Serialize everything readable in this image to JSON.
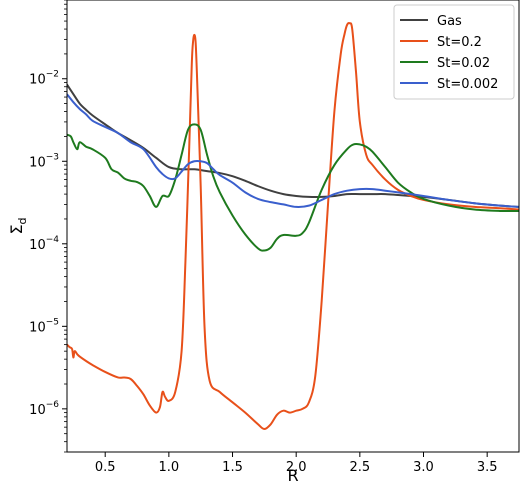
{
  "chart_data": {
    "type": "line",
    "xlabel": "R",
    "ylabel": "Σ_d",
    "xlim": [
      0.2,
      3.75
    ],
    "ylim": [
      3e-07,
      0.09
    ],
    "yscale": "log",
    "xticks": [
      0.5,
      1.0,
      1.5,
      2.0,
      2.5,
      3.0,
      3.5
    ],
    "xtick_labels": [
      "0.5",
      "1.0",
      "1.5",
      "2.0",
      "2.5",
      "3.0",
      "3.5"
    ],
    "ytick_exponents": [
      -6,
      -5,
      -4,
      -3,
      -2
    ],
    "ytick_base": "10",
    "grid": false,
    "legend_position": "top-right",
    "series": [
      {
        "name": "Gas",
        "color": "#404040",
        "x": [
          0.2,
          0.25,
          0.3,
          0.35,
          0.4,
          0.5,
          0.6,
          0.7,
          0.8,
          0.9,
          1.0,
          1.1,
          1.2,
          1.3,
          1.4,
          1.5,
          1.6,
          1.7,
          1.8,
          1.9,
          2.0,
          2.1,
          2.2,
          2.3,
          2.4,
          2.5,
          2.6,
          2.7,
          2.8,
          2.9,
          3.0,
          3.2,
          3.4,
          3.6,
          3.75
        ],
        "y": [
          0.0085,
          0.0065,
          0.005,
          0.0042,
          0.0036,
          0.0028,
          0.0022,
          0.0018,
          0.00145,
          0.0011,
          0.00085,
          0.0008,
          0.0008,
          0.00076,
          0.00072,
          0.00066,
          0.00058,
          0.0005,
          0.00044,
          0.0004,
          0.00038,
          0.00037,
          0.00037,
          0.00038,
          0.0004,
          0.0004,
          0.0004,
          0.0004,
          0.00039,
          0.00038,
          0.00037,
          0.00034,
          0.00031,
          0.00029,
          0.00028
        ]
      },
      {
        "name": "St=0.2",
        "color": "#e8501a",
        "x": [
          0.2,
          0.22,
          0.24,
          0.25,
          0.26,
          0.28,
          0.3,
          0.35,
          0.4,
          0.5,
          0.6,
          0.65,
          0.7,
          0.75,
          0.8,
          0.85,
          0.9,
          0.93,
          0.95,
          0.97,
          1.0,
          1.05,
          1.1,
          1.13,
          1.16,
          1.18,
          1.19,
          1.2,
          1.21,
          1.22,
          1.25,
          1.28,
          1.32,
          1.4,
          1.5,
          1.6,
          1.7,
          1.75,
          1.8,
          1.85,
          1.9,
          1.95,
          2.0,
          2.05,
          2.1,
          2.15,
          2.2,
          2.25,
          2.3,
          2.35,
          2.38,
          2.4,
          2.42,
          2.44,
          2.47,
          2.5,
          2.55,
          2.6,
          2.7,
          2.8,
          2.9,
          3.0,
          3.2,
          3.4,
          3.6,
          3.75
        ],
        "y": [
          6e-06,
          5.6e-06,
          5.3e-06,
          4.2e-06,
          5e-06,
          4.6e-06,
          4.3e-06,
          3.8e-06,
          3.4e-06,
          2.8e-06,
          2.4e-06,
          2.4e-06,
          2.3e-06,
          1.9e-06,
          1.5e-06,
          1.1e-06,
          9e-07,
          1.05e-06,
          1.6e-06,
          1.4e-06,
          1.25e-06,
          1.6e-06,
          5e-06,
          6e-05,
          0.0015,
          0.015,
          0.028,
          0.034,
          0.028,
          0.012,
          0.0005,
          1e-05,
          2.2e-06,
          1.6e-06,
          1.2e-06,
          9e-07,
          6.5e-07,
          5.7e-07,
          6.5e-07,
          8.5e-07,
          9.5e-07,
          9e-07,
          9.5e-07,
          1e-06,
          1.2e-06,
          2.5e-06,
          2e-05,
          0.0003,
          0.004,
          0.02,
          0.035,
          0.045,
          0.047,
          0.04,
          0.012,
          0.003,
          0.0012,
          0.0009,
          0.0006,
          0.00045,
          0.00038,
          0.00034,
          0.0003,
          0.00028,
          0.00027,
          0.00026
        ]
      },
      {
        "name": "St=0.02",
        "color": "#1e7a1e",
        "x": [
          0.2,
          0.23,
          0.25,
          0.28,
          0.3,
          0.35,
          0.4,
          0.5,
          0.55,
          0.6,
          0.65,
          0.7,
          0.75,
          0.8,
          0.85,
          0.9,
          0.95,
          1.0,
          1.05,
          1.1,
          1.15,
          1.2,
          1.25,
          1.3,
          1.35,
          1.4,
          1.5,
          1.6,
          1.7,
          1.75,
          1.8,
          1.85,
          1.9,
          2.0,
          2.05,
          2.1,
          2.2,
          2.3,
          2.4,
          2.45,
          2.5,
          2.55,
          2.6,
          2.7,
          2.8,
          2.9,
          3.0,
          3.2,
          3.4,
          3.6,
          3.75
        ],
        "y": [
          0.0021,
          0.002,
          0.0017,
          0.0014,
          0.0017,
          0.0015,
          0.0014,
          0.0011,
          0.0008,
          0.00073,
          0.00062,
          0.00058,
          0.00056,
          0.0005,
          0.00038,
          0.00028,
          0.00038,
          0.00038,
          0.0006,
          0.0012,
          0.0024,
          0.0028,
          0.0024,
          0.0012,
          0.00065,
          0.00042,
          0.00022,
          0.00013,
          8.8e-05,
          8.3e-05,
          9e-05,
          0.000115,
          0.000128,
          0.000125,
          0.000135,
          0.00018,
          0.00045,
          0.0009,
          0.0014,
          0.0016,
          0.0016,
          0.0015,
          0.0013,
          0.00085,
          0.00055,
          0.00042,
          0.00035,
          0.00029,
          0.00026,
          0.00025,
          0.00025
        ]
      },
      {
        "name": "St=0.002",
        "color": "#3a5fcd",
        "x": [
          0.2,
          0.25,
          0.3,
          0.35,
          0.4,
          0.5,
          0.6,
          0.7,
          0.8,
          0.9,
          0.95,
          1.0,
          1.05,
          1.1,
          1.15,
          1.2,
          1.25,
          1.3,
          1.35,
          1.4,
          1.5,
          1.6,
          1.7,
          1.8,
          1.9,
          2.0,
          2.1,
          2.2,
          2.3,
          2.4,
          2.5,
          2.6,
          2.7,
          2.8,
          2.9,
          3.0,
          3.2,
          3.4,
          3.6,
          3.75
        ],
        "y": [
          0.0065,
          0.0052,
          0.0043,
          0.0037,
          0.0031,
          0.0026,
          0.0022,
          0.0017,
          0.0014,
          0.00085,
          0.0007,
          0.00062,
          0.00062,
          0.00075,
          0.00092,
          0.001,
          0.001,
          0.00095,
          0.0008,
          0.00068,
          0.00055,
          0.00042,
          0.00035,
          0.00032,
          0.0003,
          0.00028,
          0.00029,
          0.00034,
          0.0004,
          0.00044,
          0.00046,
          0.00046,
          0.00044,
          0.00042,
          0.0004,
          0.00038,
          0.00034,
          0.00031,
          0.00029,
          0.00028
        ]
      }
    ]
  }
}
